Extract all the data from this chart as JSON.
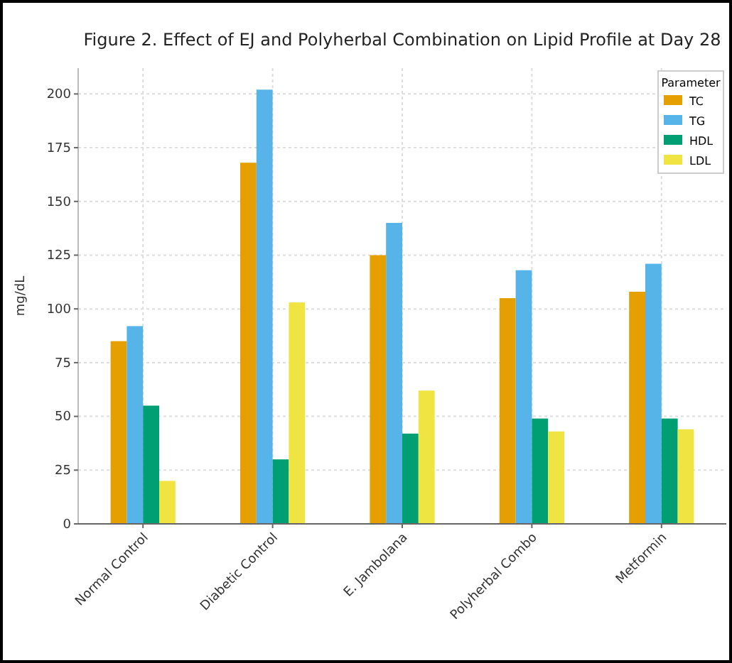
{
  "chart_data": {
    "type": "bar",
    "title": "Figure 2. Effect of EJ and Polyherbal Combination on Lipid Profile at Day 28",
    "ylabel": "mg/dL",
    "legend_title": "Parameter",
    "categories": [
      "Normal Control",
      "Diabetic Control",
      "E. Jambolana",
      "Polyherbal Combo",
      "Metformin"
    ],
    "series": [
      {
        "name": "TC",
        "color": "#e69f00",
        "values": [
          85,
          168,
          125,
          105,
          108
        ]
      },
      {
        "name": "TG",
        "color": "#56b4e9",
        "values": [
          92,
          202,
          140,
          118,
          121
        ]
      },
      {
        "name": "HDL",
        "color": "#009e73",
        "values": [
          55,
          30,
          42,
          49,
          49
        ]
      },
      {
        "name": "LDL",
        "color": "#f0e442",
        "values": [
          20,
          103,
          62,
          43,
          44
        ]
      }
    ],
    "ylim": [
      0,
      212
    ],
    "yticks": [
      0,
      25,
      50,
      75,
      100,
      125,
      150,
      175,
      200
    ],
    "grid": true,
    "legend": "top right"
  }
}
